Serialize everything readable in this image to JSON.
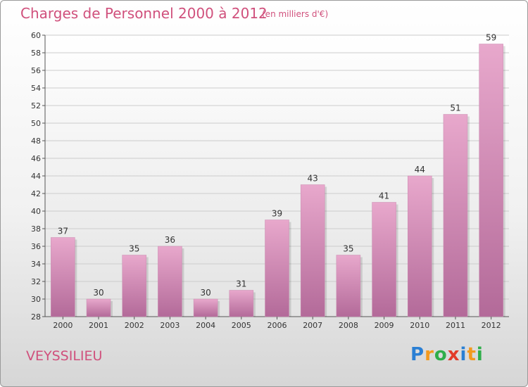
{
  "title": "Charges de Personnel 2000 à 2012",
  "subtitle": "(en milliers d'€)",
  "commune": "VEYSSILIEU",
  "logo": {
    "letters": [
      "P",
      "r",
      "o",
      "x",
      "i",
      "t",
      "i"
    ],
    "colors": [
      "#2a7fd4",
      "#f39a1e",
      "#2fae4a",
      "#e23b2a",
      "#2a7fd4",
      "#f39a1e",
      "#2fae4a"
    ]
  },
  "colors": {
    "bar_top": "#e8a8cc",
    "bar_bottom": "#b36a99",
    "accent": "#d0507c"
  },
  "chart_data": {
    "type": "bar",
    "title": "Charges de Personnel 2000 à 2012",
    "subtitle": "(en milliers d'€)",
    "categories": [
      "2000",
      "2001",
      "2002",
      "2003",
      "2004",
      "2005",
      "2006",
      "2007",
      "2008",
      "2009",
      "2010",
      "2011",
      "2012"
    ],
    "values": [
      37,
      30,
      35,
      36,
      30,
      31,
      39,
      43,
      35,
      41,
      44,
      51,
      59
    ],
    "ylim": [
      28,
      60
    ],
    "yticks": [
      28,
      30,
      32,
      34,
      36,
      38,
      40,
      42,
      44,
      46,
      48,
      50,
      52,
      54,
      56,
      58,
      60
    ],
    "grid": true
  }
}
